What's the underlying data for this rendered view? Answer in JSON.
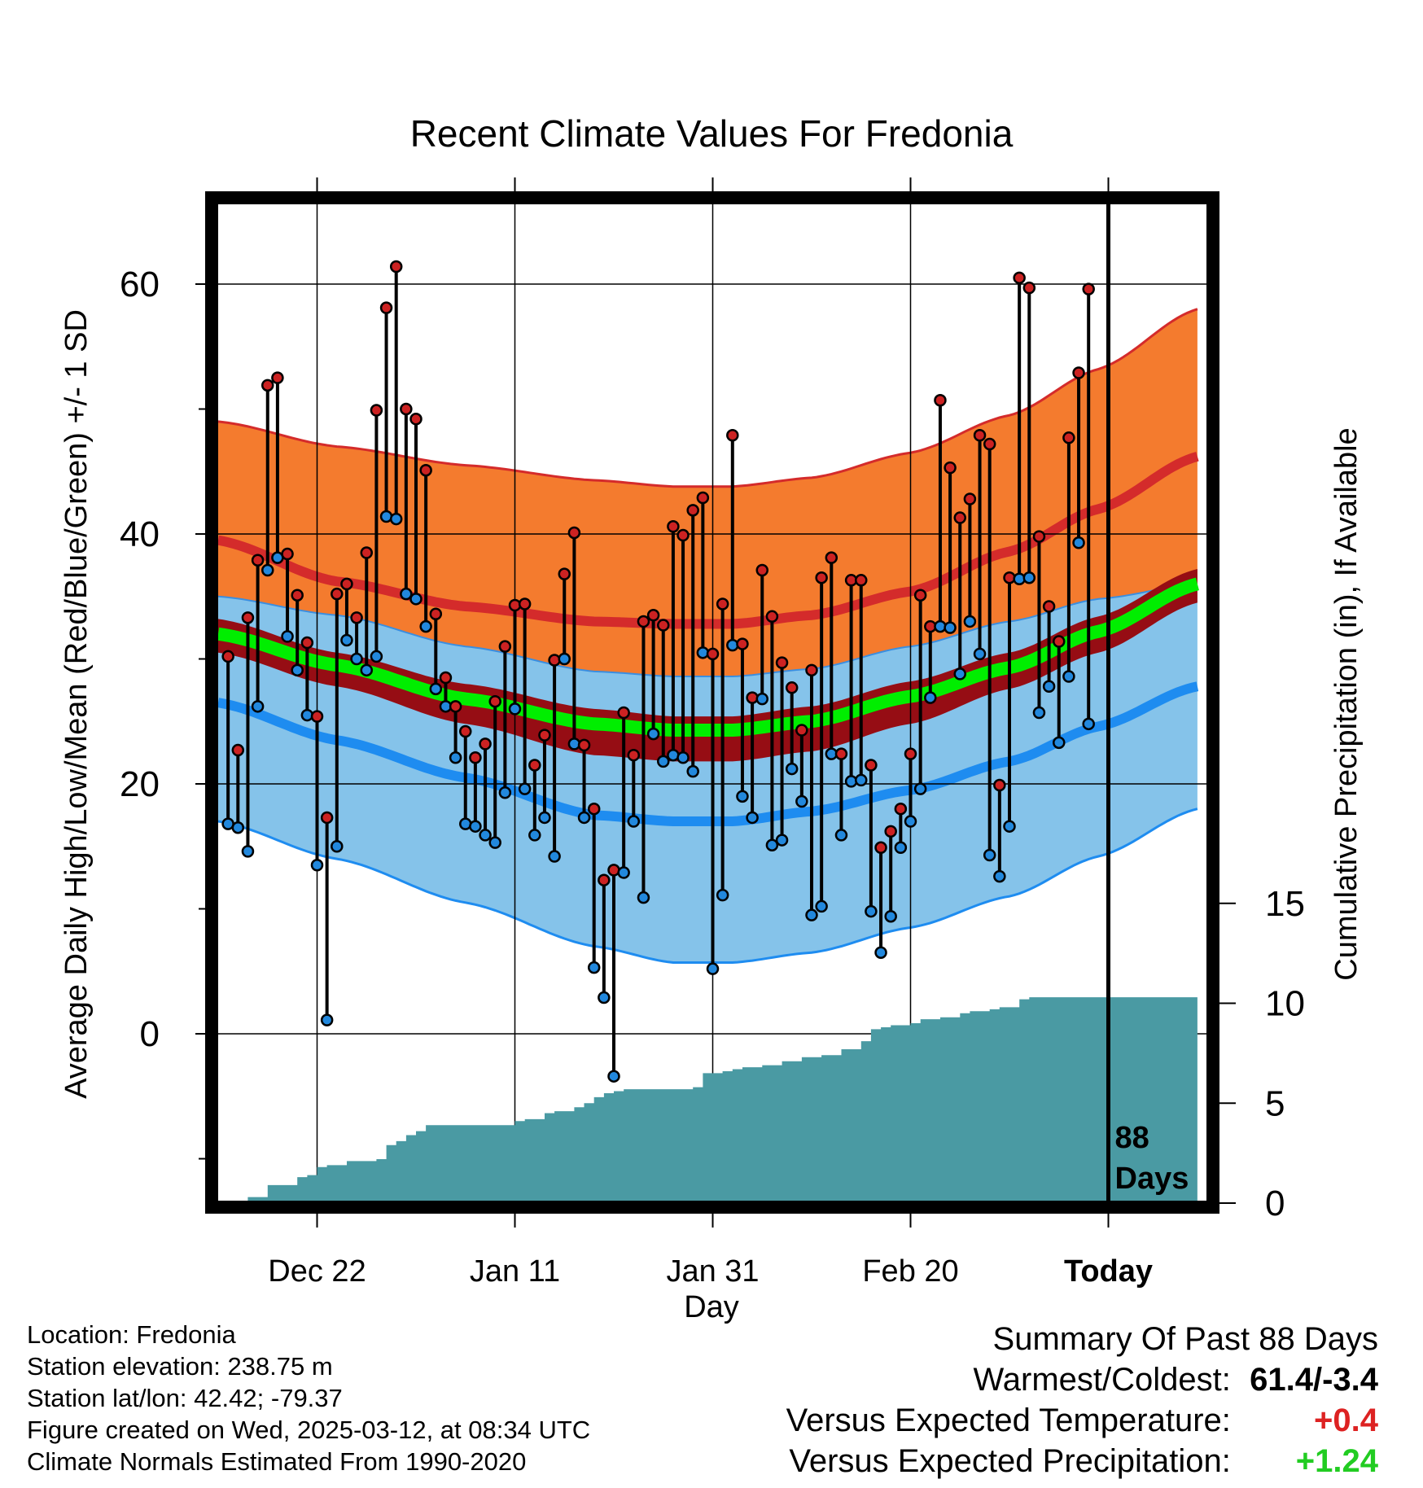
{
  "chart_data": {
    "type": "line",
    "title": "Recent Climate Values For Fredonia",
    "xlabel": "Day",
    "ylabel": "Average Daily High/Low/Mean (Red/Blue/Green) +/- 1 SD",
    "y2label": "Cumulative Precipitation (in), If Available",
    "ylim": [
      -13.5,
      67
    ],
    "y2lim": [
      -0.2,
      37.8
    ],
    "x_ticks": [
      "Dec 22",
      "Jan 11",
      "Jan 31",
      "Feb 20",
      "Today"
    ],
    "x_tick_days": [
      10,
      30,
      50,
      70,
      90
    ],
    "y_ticks": [
      0,
      20,
      40,
      60
    ],
    "y2_ticks": [
      0,
      5,
      10,
      15
    ],
    "grid": true,
    "today_label": [
      "88",
      "Days"
    ],
    "colors": {
      "high_sd_band": "#f47b2e",
      "high_mean": "#d42b2b",
      "low_sd_band": "#85c3ea",
      "low_mean": "#1e8cf0",
      "mean_sd_band": "#960d14",
      "mean_line": "#00ee00",
      "precip": "#4a9aa3",
      "high_marker": "#cc2222",
      "low_marker": "#2288dd"
    },
    "normals": {
      "day": [
        0,
        12,
        25,
        38,
        46,
        52,
        60,
        70,
        80,
        89,
        99
      ],
      "high_plus_sd": [
        49,
        47,
        45.5,
        44.3,
        43.8,
        43.8,
        44.5,
        46.5,
        49.5,
        53.2,
        58
      ],
      "high_mean": [
        39.5,
        36.2,
        34.2,
        33.0,
        32.8,
        32.8,
        33.5,
        35.4,
        38.6,
        42.0,
        46.2
      ],
      "low_plus_sd": [
        35,
        33.5,
        31.0,
        29.0,
        28.6,
        28.6,
        29.2,
        31.0,
        33.0,
        34.8,
        36.0
      ],
      "mean_plus_sd": [
        33.2,
        30.5,
        28.0,
        26.0,
        25.4,
        25.4,
        26.2,
        28.2,
        30.5,
        33.4,
        37.2
      ],
      "mean_line": [
        32.0,
        29.5,
        26.8,
        24.8,
        24.3,
        24.3,
        25.0,
        27.0,
        29.3,
        32.2,
        36.0
      ],
      "mean_minus_sd": [
        30.5,
        27.8,
        24.8,
        22.3,
        21.8,
        21.8,
        22.6,
        24.8,
        27.6,
        30.5,
        34.5
      ],
      "low_mean": [
        26.5,
        23.5,
        20.5,
        17.5,
        17.0,
        17.0,
        17.8,
        19.5,
        21.8,
        24.6,
        27.8
      ],
      "low_minus_sd": [
        17,
        14,
        10.5,
        7,
        5.7,
        5.7,
        6.5,
        8.5,
        11.0,
        14.2,
        18.0
      ]
    },
    "daily": {
      "high": [
        30.2,
        22.7,
        33.3,
        37.9,
        51.9,
        52.5,
        38.4,
        35.1,
        31.3,
        25.4,
        17.3,
        35.2,
        36.0,
        33.3,
        38.5,
        49.9,
        58.1,
        61.4,
        50.0,
        49.2,
        45.1,
        33.6,
        28.5,
        26.2,
        24.2,
        22.1,
        23.2,
        26.6,
        31.0,
        34.3,
        34.4,
        21.5,
        23.9,
        29.9,
        36.8,
        40.1,
        23.1,
        18.0,
        12.3,
        13.1,
        25.7,
        22.3,
        33.0,
        33.5,
        32.7,
        40.6,
        39.9,
        41.9,
        42.9,
        30.4,
        34.4,
        47.9,
        31.2,
        26.9,
        37.1,
        33.4,
        29.7,
        27.7,
        24.3,
        29.1,
        36.5,
        38.1,
        22.4,
        36.3,
        36.3,
        21.5,
        14.9,
        16.2,
        18.0,
        22.4,
        35.1,
        32.6,
        50.7,
        45.3,
        41.3,
        42.8,
        47.9,
        47.2,
        19.9,
        36.5,
        60.5,
        59.7,
        39.8,
        34.2,
        31.4,
        47.7,
        52.9,
        59.6
      ],
      "low": [
        16.8,
        16.5,
        14.6,
        26.2,
        37.1,
        38.1,
        31.8,
        29.1,
        25.5,
        13.5,
        1.1,
        15.0,
        31.5,
        30.0,
        29.1,
        30.2,
        41.4,
        41.2,
        35.2,
        34.8,
        32.6,
        27.6,
        26.2,
        22.1,
        16.8,
        16.6,
        15.9,
        15.3,
        19.3,
        26.0,
        19.6,
        15.9,
        17.3,
        14.2,
        30.0,
        23.2,
        17.3,
        5.3,
        2.9,
        -3.4,
        12.9,
        17.0,
        10.9,
        24.0,
        21.8,
        22.3,
        22.1,
        21.0,
        30.5,
        5.2,
        11.1,
        31.1,
        19.0,
        17.3,
        26.8,
        15.1,
        15.5,
        21.2,
        18.6,
        9.5,
        10.2,
        22.4,
        15.9,
        20.2,
        20.3,
        9.8,
        6.5,
        9.4,
        14.9,
        17.0,
        19.6,
        26.9,
        32.6,
        32.5,
        28.8,
        33.0,
        30.4,
        14.3,
        12.6,
        16.6,
        36.4,
        36.5,
        25.7,
        27.8,
        23.3,
        28.6,
        39.3,
        24.8
      ]
    },
    "precip": {
      "day": [
        0,
        3,
        5,
        6,
        8,
        9,
        10,
        11,
        13,
        15,
        16,
        17,
        18,
        19,
        20,
        21,
        28,
        30,
        31,
        33,
        34,
        36,
        37,
        38,
        39,
        40,
        41,
        48,
        49,
        51,
        52,
        53,
        55,
        57,
        59,
        61,
        63,
        65,
        66,
        67,
        68,
        70,
        71,
        73,
        75,
        76,
        78,
        79,
        80,
        81,
        82,
        99
      ],
      "value": [
        0.1,
        0.3,
        0.9,
        0.9,
        1.3,
        1.4,
        1.8,
        1.9,
        2.1,
        2.1,
        2.2,
        2.9,
        3.1,
        3.4,
        3.6,
        3.9,
        3.9,
        4.1,
        4.2,
        4.5,
        4.6,
        4.8,
        5.0,
        5.3,
        5.5,
        5.6,
        5.7,
        5.8,
        6.5,
        6.6,
        6.7,
        6.8,
        6.9,
        7.1,
        7.3,
        7.4,
        7.7,
        8.1,
        8.7,
        8.8,
        8.9,
        9.0,
        9.2,
        9.3,
        9.5,
        9.6,
        9.7,
        9.8,
        9.8,
        10.2,
        10.3,
        10.3
      ]
    }
  },
  "footer": {
    "location": "Location: Fredonia",
    "elevation": "Station elevation: 238.75 m",
    "latlon": "Station lat/lon: 42.42; -79.37",
    "created": "Figure created on Wed, 2025-03-12, at 08:34 UTC",
    "normals": "Climate Normals Estimated From 1990-2020"
  },
  "summary": {
    "title": "Summary Of Past 88 Days",
    "warmest_label": "Warmest/Coldest:",
    "warmest_value": "61.4/-3.4",
    "temp_label": "Versus Expected Temperature:",
    "temp_value": "+0.4",
    "temp_color": "#dd2222",
    "precip_label": "Versus Expected Precipitation:",
    "precip_value": "+1.24",
    "precip_color": "#22cc22"
  }
}
